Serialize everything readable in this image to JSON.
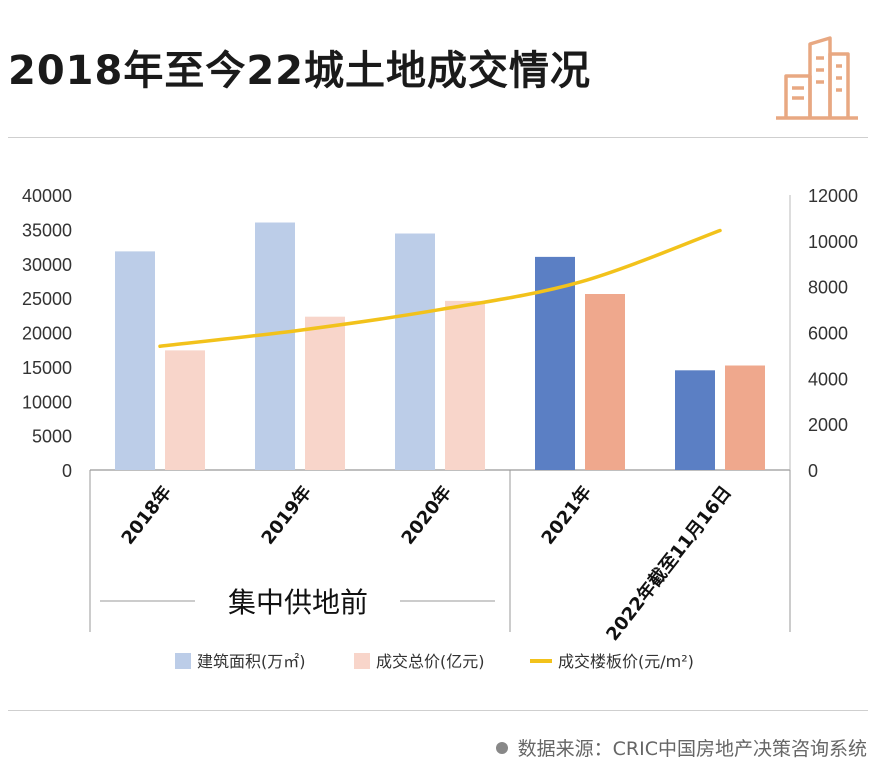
{
  "header": {
    "title": "2018年至今22城土地成交情况",
    "logo_icon": "building-icon",
    "logo_color": "#E8A882"
  },
  "annotation": {
    "group_label": "集中供地前"
  },
  "source": {
    "text": "数据来源：CRIC中国房地产决策咨询系统"
  },
  "chart_data": {
    "type": "bar",
    "categories": [
      "2018年",
      "2019年",
      "2020年",
      "2021年",
      "2022年截至11月16日"
    ],
    "series": [
      {
        "name": "建筑面积(万㎡)",
        "kind": "bar",
        "axis": "left",
        "values": [
          31800,
          36000,
          34400,
          31000,
          14500
        ],
        "colors": [
          "#BCCDE8",
          "#BCCDE8",
          "#BCCDE8",
          "#5B7FC4",
          "#5B7FC4"
        ]
      },
      {
        "name": "成交总价(亿元)",
        "kind": "bar",
        "axis": "left",
        "values": [
          17400,
          22300,
          24600,
          25600,
          15200
        ],
        "colors": [
          "#F8D5CA",
          "#F8D5CA",
          "#F8D5CA",
          "#EFA88D",
          "#EFA88D"
        ]
      },
      {
        "name": "成交楼板价(元/m²)",
        "kind": "line",
        "axis": "right",
        "values": [
          5400,
          6100,
          7000,
          8200,
          10450
        ],
        "color": "#F2C21B"
      }
    ],
    "legend_colors": [
      "#BCCDE8",
      "#F8D5CA",
      "#F2C21B"
    ],
    "y_left": {
      "min": 0,
      "max": 40000,
      "ticks": [
        0,
        5000,
        10000,
        15000,
        20000,
        25000,
        30000,
        35000,
        40000
      ]
    },
    "y_right": {
      "min": 0,
      "max": 12000,
      "ticks": [
        0,
        2000,
        4000,
        6000,
        8000,
        10000,
        12000
      ]
    },
    "legend_position": "bottom"
  }
}
